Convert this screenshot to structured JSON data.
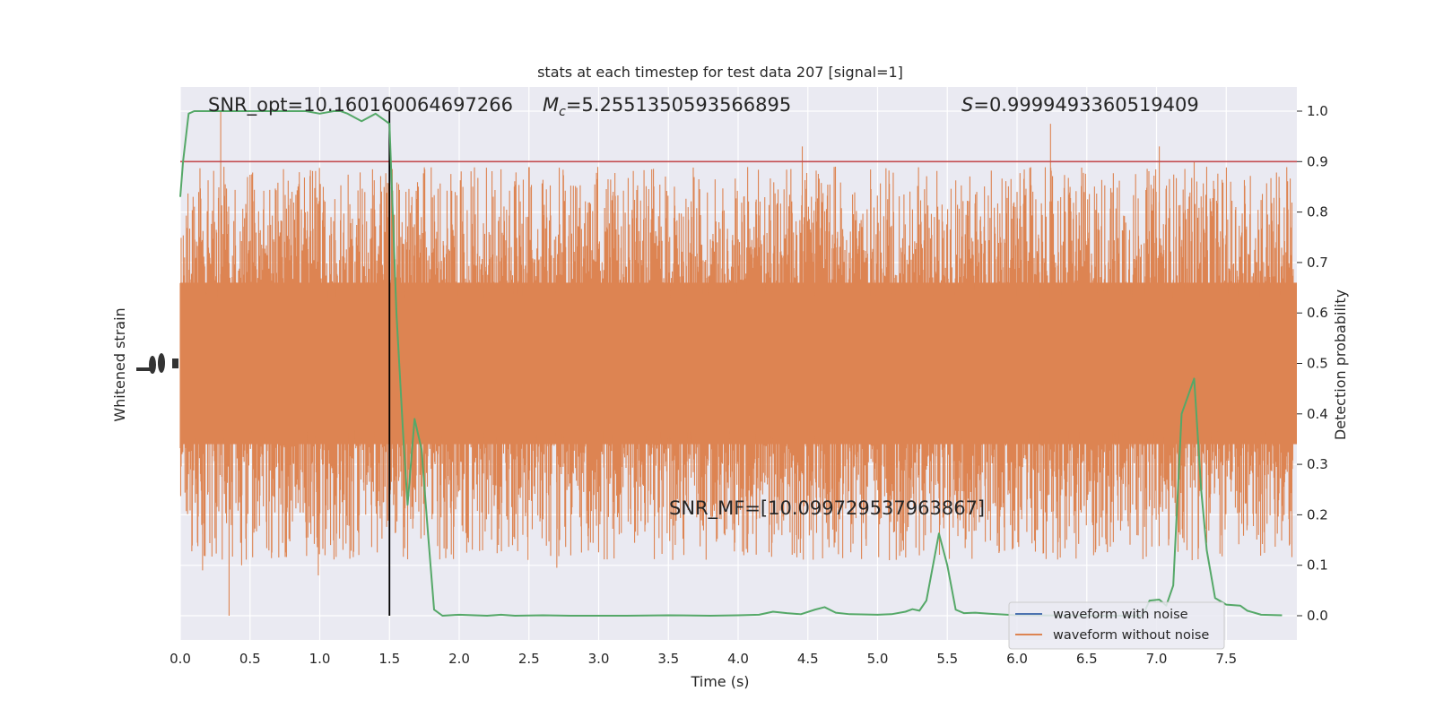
{
  "chart_data": {
    "type": "line",
    "title": "stats at each timestep for test data 207 [signal=1]",
    "xlabel": "Time (s)",
    "ylabel_left": "Whitened strain",
    "ylabel_right": "Detection probability",
    "xlim": [
      0,
      8.0
    ],
    "ylim_right": [
      -0.05,
      1.05
    ],
    "x_ticks": [
      "0.0",
      "0.5",
      "1.0",
      "1.5",
      "2.0",
      "2.5",
      "3.0",
      "3.5",
      "4.0",
      "4.5",
      "5.0",
      "5.5",
      "6.0",
      "6.5",
      "7.0",
      "7.5"
    ],
    "y_ticks_right": [
      "0.0",
      "0.1",
      "0.2",
      "0.3",
      "0.4",
      "0.5",
      "0.6",
      "0.7",
      "0.8",
      "0.9",
      "1.0"
    ],
    "grid": true,
    "legend": {
      "placement": "bottom-right",
      "entries": [
        {
          "label": "waveform with noise",
          "color": "#4c72b0"
        },
        {
          "label": "waveform without noise",
          "color": "#dd8452"
        }
      ]
    },
    "annotations": {
      "snr_opt": "SNR_opt=10.160160064697266",
      "mc_symbol": "M",
      "mc_subscript": "c",
      "mc_value": "=5.2551350593566895",
      "s_symbol": "S",
      "s_value": "=0.9999493360519409",
      "snr_mf": "SNR_MF=[10.099729537963867]"
    },
    "threshold": 0.9,
    "event_time": 1.5,
    "series": [
      {
        "name": "waveform without noise",
        "color": "#dd8452",
        "kind": "noise-band",
        "band_center": 0.5,
        "typical_extent": [
          0.3,
          0.7
        ],
        "peaks": [
          {
            "x": 0.29,
            "y": 1.0
          },
          {
            "x": 0.35,
            "y": 0.0
          },
          {
            "x": 0.16,
            "y": 0.09
          },
          {
            "x": 0.44,
            "y": 0.1
          },
          {
            "x": 0.99,
            "y": 0.08
          },
          {
            "x": 2.7,
            "y": 0.095
          },
          {
            "x": 4.46,
            "y": 0.93
          },
          {
            "x": 6.24,
            "y": 0.975
          },
          {
            "x": 7.02,
            "y": 0.93
          },
          {
            "x": 7.27,
            "y": 0.9
          },
          {
            "x": 6.38,
            "y": 0.85
          },
          {
            "x": 6.0,
            "y": 0.84
          },
          {
            "x": 7.88,
            "y": 0.81
          }
        ]
      },
      {
        "name": "",
        "color": "#55a868",
        "kind": "line",
        "x": [
          0.0,
          0.02,
          0.06,
          0.1,
          0.2,
          0.3,
          0.5,
          0.7,
          0.9,
          1.0,
          1.1,
          1.15,
          1.2,
          1.3,
          1.4,
          1.45,
          1.5,
          1.55,
          1.6,
          1.63,
          1.68,
          1.73,
          1.78,
          1.82,
          1.88,
          2.0,
          2.2,
          2.3,
          2.4,
          2.6,
          2.8,
          3.0,
          3.2,
          3.5,
          3.8,
          4.0,
          4.15,
          4.25,
          4.35,
          4.45,
          4.55,
          4.62,
          4.7,
          4.8,
          5.0,
          5.1,
          5.2,
          5.25,
          5.3,
          5.35,
          5.44,
          5.5,
          5.56,
          5.62,
          5.7,
          5.8,
          6.0,
          6.5,
          6.9,
          6.95,
          7.02,
          7.07,
          7.12,
          7.18,
          7.27,
          7.32,
          7.36,
          7.42,
          7.5,
          7.6,
          7.65,
          7.75,
          7.9
        ],
        "y": [
          0.83,
          0.9,
          0.995,
          1.0,
          1.0,
          1.0,
          1.0,
          1.0,
          1.0,
          0.995,
          1.0,
          1.0,
          0.995,
          0.98,
          0.995,
          0.985,
          0.975,
          0.6,
          0.35,
          0.22,
          0.39,
          0.33,
          0.15,
          0.012,
          0.0,
          0.002,
          0.0,
          0.002,
          0.0,
          0.001,
          0.0,
          0.0,
          0.0,
          0.001,
          0.0,
          0.001,
          0.002,
          0.008,
          0.005,
          0.003,
          0.012,
          0.017,
          0.006,
          0.003,
          0.002,
          0.003,
          0.008,
          0.013,
          0.01,
          0.03,
          0.163,
          0.1,
          0.012,
          0.005,
          0.006,
          0.004,
          0.001,
          0.0,
          0.0,
          0.03,
          0.032,
          0.02,
          0.06,
          0.4,
          0.47,
          0.25,
          0.13,
          0.035,
          0.022,
          0.02,
          0.01,
          0.002,
          0.001
        ]
      }
    ]
  }
}
